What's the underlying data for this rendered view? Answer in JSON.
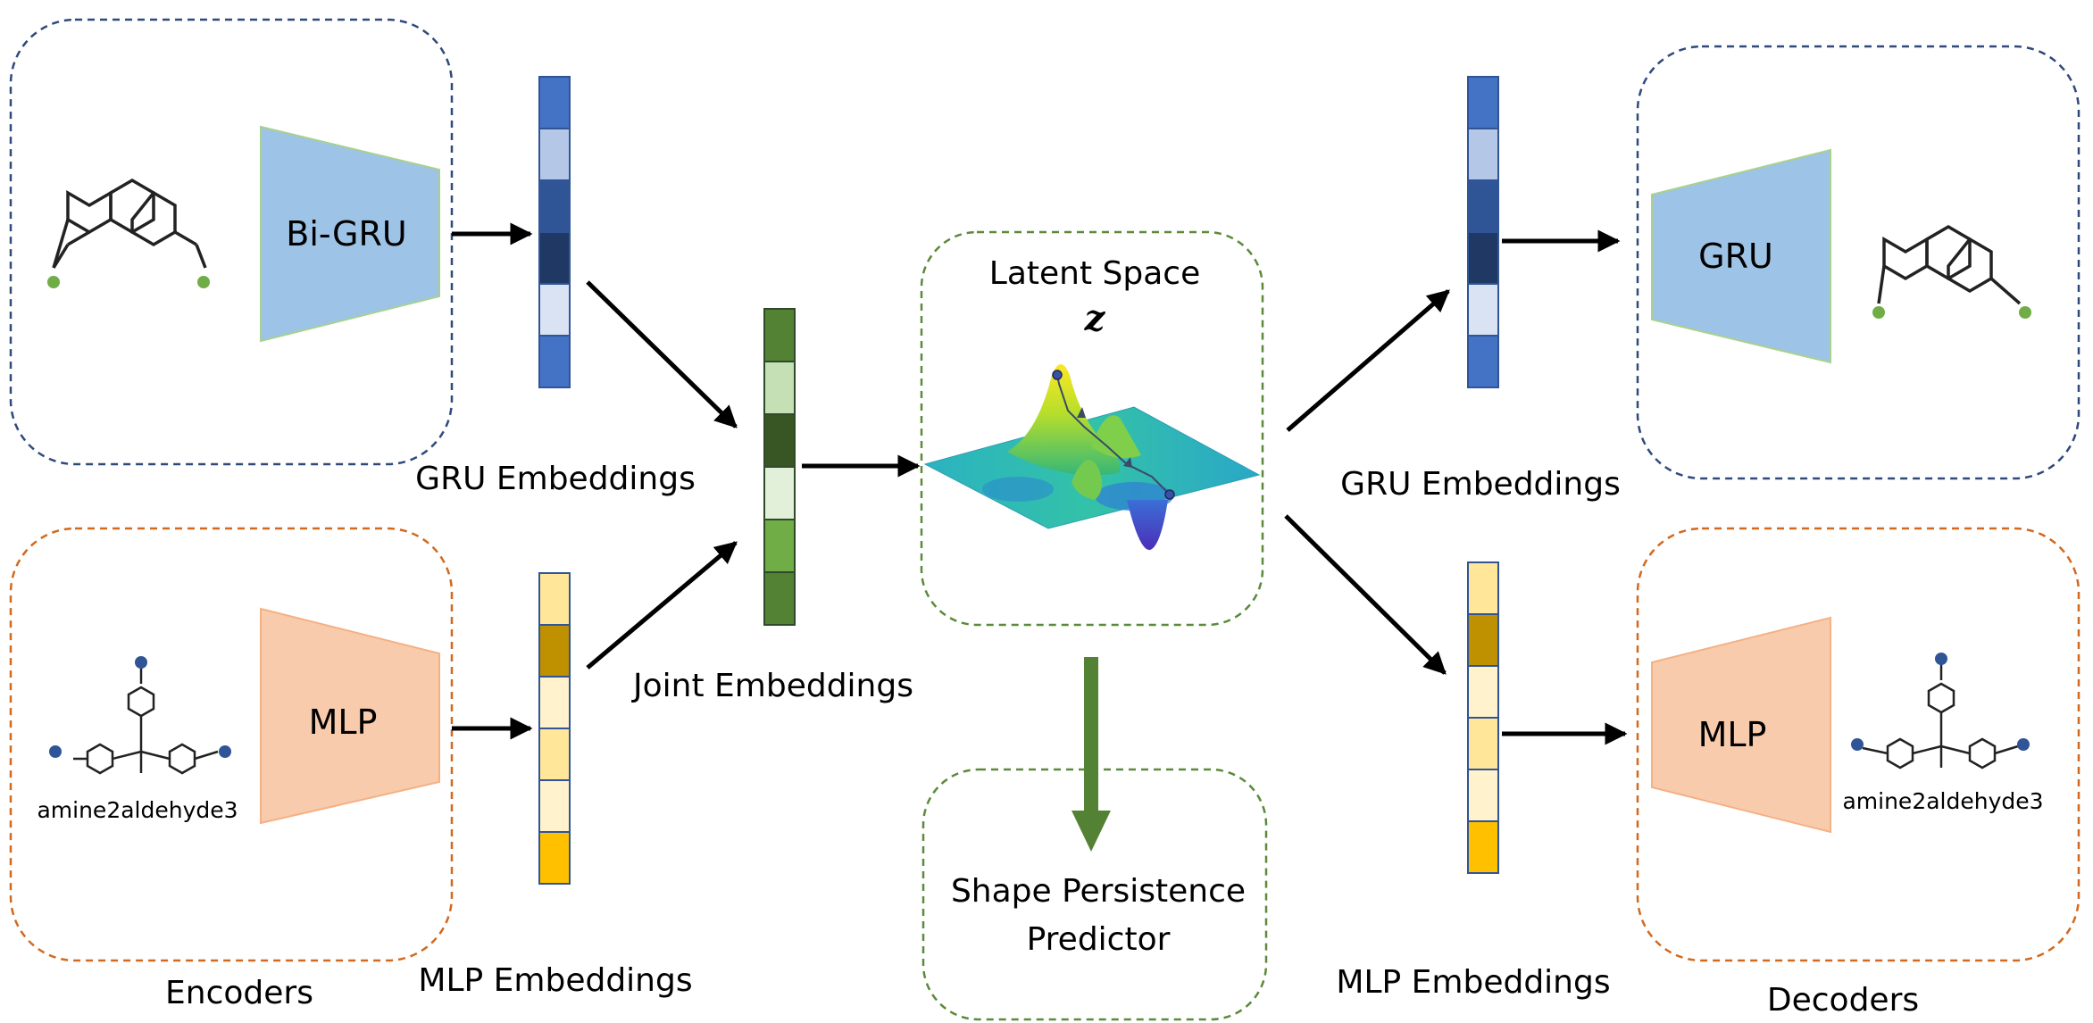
{
  "encoders": {
    "title": "Encoders",
    "gru_box_label": "Bi-GRU",
    "mlp_box_label": "MLP",
    "mlp_molecule_name": "amine2aldehyde3"
  },
  "embeddings": {
    "gru_left_label": "GRU Embeddings",
    "mlp_left_label": "MLP Embeddings",
    "joint_label": "Joint Embeddings",
    "gru_right_label": "GRU Embeddings",
    "mlp_right_label": "MLP Embeddings"
  },
  "latent": {
    "title": "Latent Space",
    "symbol": "z"
  },
  "predictor": {
    "line1": "Shape Persistence",
    "line2": "Predictor"
  },
  "decoders": {
    "title": "Decoders",
    "gru_box_label": "GRU",
    "mlp_box_label": "MLP",
    "mlp_molecule_name": "amine2aldehyde3"
  },
  "colors": {
    "gru_dash": "#2f4a7a",
    "mlp_dash": "#d2691e",
    "latent_dash": "#5a8a3a",
    "gru_trap": "#9dc3e6",
    "mlp_trap": "#f8cbad",
    "green_arrow": "#548235",
    "blue_cells": [
      "#4472c4",
      "#b4c7e7",
      "#2f5597",
      "#1f3864",
      "#dae3f3",
      "#4472c4"
    ],
    "joint_cells": [
      "#548235",
      "#c5e0b4",
      "#375623",
      "#e2f0d9",
      "#70ad47",
      "#548235"
    ],
    "yellow_cells": [
      "#ffe699",
      "#bf9000",
      "#fff2cc",
      "#ffe699",
      "#fff2cc",
      "#ffc000"
    ],
    "yellow_cells_right": [
      "#ffe699",
      "#bf9000",
      "#fff2cc",
      "#ffe699",
      "#fff2cc",
      "#ffc000"
    ]
  }
}
